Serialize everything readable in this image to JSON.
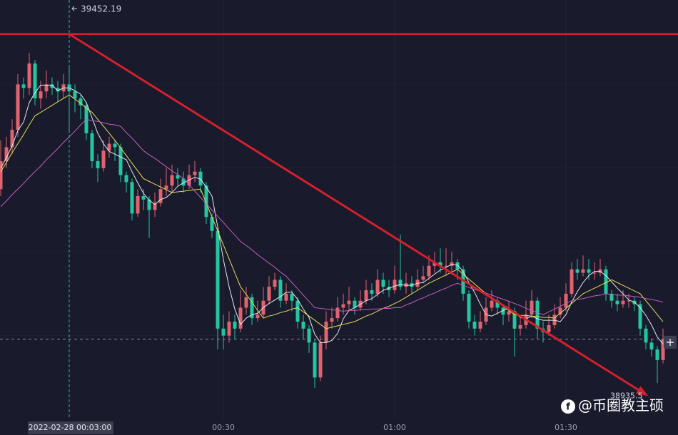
{
  "chart_data": {
    "type": "candlestick",
    "x": [
      "23:51",
      "23:52",
      "23:53",
      "23:54",
      "23:55",
      "23:56",
      "23:57",
      "23:58",
      "23:59",
      "00:00",
      "00:01",
      "00:02",
      "00:03",
      "00:04",
      "00:05",
      "00:06",
      "00:07",
      "00:08",
      "00:09",
      "00:10",
      "00:11",
      "00:12",
      "00:13",
      "00:14",
      "00:15",
      "00:16",
      "00:17",
      "00:18",
      "00:19",
      "00:20",
      "00:21",
      "00:22",
      "00:23",
      "00:24",
      "00:25",
      "00:26",
      "00:27",
      "00:28",
      "00:29",
      "00:30",
      "00:31",
      "00:32",
      "00:33",
      "00:34",
      "00:35",
      "00:36",
      "00:37",
      "00:38",
      "00:39",
      "00:40",
      "00:41",
      "00:42",
      "00:43",
      "00:44",
      "00:45",
      "00:46",
      "00:47",
      "00:48",
      "00:49",
      "00:50",
      "00:51",
      "00:52",
      "00:53",
      "00:54",
      "00:55",
      "00:56",
      "00:57",
      "00:58",
      "00:59",
      "01:00",
      "01:01",
      "01:02",
      "01:03",
      "01:04",
      "01:05",
      "01:06",
      "01:07",
      "01:08",
      "01:09",
      "01:10",
      "01:11",
      "01:12",
      "01:13",
      "01:14",
      "01:15",
      "01:16",
      "01:17",
      "01:18",
      "01:19",
      "01:20",
      "01:21",
      "01:22",
      "01:23",
      "01:24",
      "01:25",
      "01:26",
      "01:27",
      "01:28",
      "01:29",
      "01:30",
      "01:31",
      "01:32",
      "01:33",
      "01:34",
      "01:35",
      "01:36",
      "01:37",
      "01:38",
      "01:39",
      "01:40",
      "01:41",
      "01:42",
      "01:43",
      "01:44",
      "01:45",
      "01:46",
      "01:47"
    ],
    "open": [
      39230,
      39270,
      39290,
      39315,
      39380,
      39375,
      39410,
      39360,
      39370,
      39380,
      39375,
      39370,
      39380,
      39370,
      39360,
      39350,
      39310,
      39270,
      39260,
      39285,
      39295,
      39290,
      39250,
      39240,
      39195,
      39220,
      39215,
      39200,
      39210,
      39230,
      39235,
      39250,
      39245,
      39235,
      39250,
      39255,
      39235,
      39190,
      39170,
      39030,
      39020,
      39040,
      39030,
      39060,
      39075,
      39045,
      39050,
      39070,
      39090,
      39100,
      39070,
      39080,
      39070,
      39040,
      39030,
      39010,
      38960,
      39010,
      39040,
      39045,
      39060,
      39065,
      39070,
      39060,
      39070,
      39085,
      39080,
      39100,
      39090,
      39085,
      39100,
      39090,
      39095,
      39090,
      39100,
      39105,
      39120,
      39125,
      39120,
      39120,
      39125,
      39115,
      39080,
      39040,
      39030,
      39040,
      39060,
      39070,
      39060,
      39050,
      39055,
      39030,
      39035,
      39050,
      39070,
      39030,
      39025,
      39035,
      39050,
      39060,
      39080,
      39115,
      39110,
      39115,
      39110,
      39110,
      39115,
      39080,
      39070,
      39065,
      39070,
      39070,
      39065,
      39030,
      39010,
      39000,
      38985
    ],
    "high": [
      39300,
      39305,
      39330,
      39395,
      39390,
      39425,
      39415,
      39385,
      39400,
      39390,
      39385,
      39395,
      39405,
      39380,
      39365,
      39355,
      39315,
      39280,
      39300,
      39305,
      39300,
      39295,
      39255,
      39245,
      39230,
      39230,
      39220,
      39225,
      39245,
      39260,
      39265,
      39260,
      39255,
      39265,
      39270,
      39260,
      39240,
      39195,
      39175,
      39050,
      39055,
      39050,
      39085,
      39090,
      39080,
      39070,
      39090,
      39105,
      39110,
      39105,
      39095,
      39085,
      39075,
      39050,
      39035,
      39015,
      39020,
      39055,
      39060,
      39075,
      39080,
      39090,
      39075,
      39085,
      39100,
      39095,
      39115,
      39110,
      39100,
      39120,
      39165,
      39110,
      39105,
      39115,
      39120,
      39135,
      39140,
      39145,
      39145,
      39140,
      39130,
      39120,
      39085,
      39050,
      39055,
      39075,
      39085,
      39075,
      39065,
      39070,
      39060,
      39050,
      39070,
      39085,
      39075,
      39040,
      39050,
      39065,
      39075,
      39095,
      39125,
      39130,
      39135,
      39130,
      39125,
      39130,
      39120,
      39085,
      39080,
      39085,
      39080,
      39075,
      39070,
      39035,
      39015,
      39005,
      39030
    ],
    "low": [
      39220,
      39260,
      39280,
      39305,
      39360,
      39365,
      39350,
      39345,
      39360,
      39365,
      39355,
      39360,
      39310,
      39340,
      39330,
      39300,
      39260,
      39240,
      39255,
      39275,
      39270,
      39240,
      39225,
      39185,
      39190,
      39200,
      39160,
      39190,
      39205,
      39220,
      39225,
      39235,
      39225,
      39230,
      39240,
      39225,
      39180,
      39160,
      39000,
      39000,
      39010,
      39015,
      39025,
      39050,
      39035,
      39040,
      39045,
      39065,
      39085,
      39060,
      39065,
      39055,
      39030,
      39015,
      38995,
      38945,
      38955,
      39000,
      39030,
      39040,
      39050,
      39055,
      39050,
      39055,
      39065,
      39070,
      39075,
      39080,
      39075,
      39080,
      39085,
      39080,
      39080,
      39085,
      39095,
      39100,
      39110,
      39110,
      39105,
      39110,
      39100,
      39070,
      39030,
      39020,
      39025,
      39035,
      39055,
      39050,
      39035,
      39040,
      38990,
      39020,
      39030,
      39045,
      39015,
      39010,
      39020,
      39030,
      39045,
      39055,
      39075,
      39100,
      39105,
      39100,
      39100,
      39105,
      39070,
      39060,
      39055,
      39060,
      39060,
      39055,
      39020,
      39000,
      38990,
      38952,
      38980
    ],
    "close": [
      39270,
      39290,
      39315,
      39380,
      39375,
      39410,
      39360,
      39370,
      39380,
      39375,
      39370,
      39380,
      39370,
      39360,
      39350,
      39310,
      39270,
      39260,
      39285,
      39295,
      39290,
      39250,
      39240,
      39195,
      39220,
      39215,
      39200,
      39210,
      39230,
      39235,
      39250,
      39245,
      39235,
      39250,
      39255,
      39235,
      39190,
      39170,
      39030,
      39020,
      39040,
      39030,
      39060,
      39075,
      39045,
      39050,
      39070,
      39090,
      39100,
      39070,
      39080,
      39070,
      39040,
      39030,
      39010,
      38960,
      39010,
      39040,
      39045,
      39060,
      39065,
      39070,
      39060,
      39070,
      39085,
      39080,
      39100,
      39090,
      39085,
      39100,
      39090,
      39095,
      39090,
      39100,
      39105,
      39120,
      39125,
      39120,
      39120,
      39125,
      39115,
      39080,
      39040,
      39030,
      39040,
      39060,
      39070,
      39060,
      39050,
      39055,
      39030,
      39035,
      39050,
      39070,
      39030,
      39025,
      39035,
      39050,
      39060,
      39080,
      39115,
      39110,
      39115,
      39110,
      39110,
      39115,
      39080,
      39070,
      39065,
      39070,
      39070,
      39065,
      39030,
      39010,
      39000,
      38985,
      39015
    ],
    "up_color": "#e06470",
    "down_color": "#22c79f",
    "ma": [
      {
        "color": "#e4e6f0",
        "values": [
          39260,
          39275,
          39292,
          39314,
          39326,
          39354,
          39368,
          39379,
          39379,
          39379,
          39371,
          39375,
          39375,
          39371,
          39366,
          39354,
          39332,
          39310,
          39295,
          39284,
          39280,
          39276,
          39272,
          39255,
          39239,
          39224,
          39214,
          39208,
          39215,
          39218,
          39225,
          39234,
          39239,
          39243,
          39247,
          39244,
          39233,
          39220,
          39176,
          39129,
          39090,
          39058,
          39036,
          39045,
          39050,
          39052,
          39060,
          39066,
          39071,
          39076,
          39082,
          39082,
          39072,
          39058,
          39046,
          39022,
          39010,
          39010,
          39013,
          39023,
          39044,
          39056,
          39060,
          39065,
          39070,
          39073,
          39079,
          39085,
          39088,
          39091,
          39093,
          39092,
          39092,
          39095,
          39096,
          39102,
          39108,
          39114,
          39118,
          39122,
          39121,
          39112,
          39096,
          39082,
          39065,
          39050,
          39048,
          39052,
          39056,
          39059,
          39053,
          39046,
          39044,
          39048,
          39044,
          39042,
          39042,
          39042,
          39040,
          39050,
          39068,
          39083,
          39096,
          39106,
          39112,
          39112,
          39106,
          39097,
          39088,
          39080,
          39071,
          39068,
          39060,
          39049,
          39035,
          39018,
          39008
        ]
      },
      {
        "color": "#e3dc58",
        "values": [
          39255,
          39268,
          39282,
          39295,
          39308,
          39322,
          39335,
          39340,
          39345,
          39350,
          39355,
          39360,
          39365,
          39359,
          39353,
          39346,
          39340,
          39330,
          39320,
          39310,
          39300,
          39289,
          39278,
          39267,
          39256,
          39245,
          39241,
          39237,
          39233,
          39229,
          39225,
          39226,
          39227,
          39228,
          39229,
          39230,
          39210,
          39190,
          39170,
          39150,
          39130,
          39110,
          39090,
          39079,
          39068,
          39056,
          39045,
          39048,
          39050,
          39053,
          39055,
          39058,
          39060,
          39054,
          39048,
          39042,
          39036,
          39030,
          39032,
          39034,
          39036,
          39038,
          39040,
          39044,
          39048,
          39051,
          39055,
          39059,
          39062,
          39066,
          39070,
          39075,
          39080,
          39085,
          39090,
          39095,
          39099,
          39103,
          39107,
          39111,
          39115,
          39108,
          39101,
          39094,
          39087,
          39080,
          39074,
          39068,
          39062,
          39056,
          39050,
          39049,
          39049,
          39048,
          39047,
          39046,
          39046,
          39045,
          39052,
          39059,
          39066,
          39073,
          39080,
          39084,
          39088,
          39092,
          39096,
          39100,
          39096,
          39092,
          39088,
          39084,
          39080,
          39070,
          39060,
          39050,
          39040
        ]
      },
      {
        "color": "#c35fc0",
        "values": [
          39205,
          39213,
          39222,
          39230,
          39238,
          39247,
          39255,
          39263,
          39272,
          39280,
          39288,
          39297,
          39305,
          39313,
          39322,
          39330,
          39328,
          39327,
          39325,
          39323,
          39322,
          39320,
          39311,
          39303,
          39294,
          39285,
          39279,
          39274,
          39268,
          39262,
          39256,
          39251,
          39245,
          39236,
          39227,
          39218,
          39209,
          39200,
          39191,
          39182,
          39173,
          39164,
          39155,
          39149,
          39143,
          39136,
          39130,
          39124,
          39118,
          39111,
          39105,
          39096,
          39087,
          39078,
          39069,
          39060,
          39059,
          39058,
          39057,
          39056,
          39055,
          39056,
          39056,
          39057,
          39057,
          39058,
          39058,
          39059,
          39059,
          39060,
          39060,
          39064,
          39067,
          39071,
          39074,
          39078,
          39081,
          39085,
          39088,
          39092,
          39095,
          39092,
          39089,
          39086,
          39084,
          39081,
          39078,
          39075,
          39072,
          39069,
          39066,
          39063,
          39059,
          39056,
          39053,
          39050,
          39054,
          39058,
          39062,
          39066,
          39070,
          39072,
          39073,
          39075,
          39077,
          39078,
          39080,
          39079,
          39078,
          39078,
          39077,
          39076,
          39075,
          39073,
          39072,
          39070,
          39068
        ]
      }
    ],
    "ylim": [
      38900,
      39501
    ],
    "xticks": [
      "00:30",
      "01:00",
      "01:30"
    ],
    "grid": true,
    "hline": {
      "value": 39452.19,
      "color": "#d3202c"
    },
    "crosshair": {
      "x": "00:03",
      "label": "2022-02-28 00:03:00"
    },
    "trend_line": {
      "from": {
        "x": "00:03",
        "y": 39452.19
      },
      "to": {
        "x": "01:44",
        "y": 38935.5
      },
      "color": "#d3202c"
    },
    "watermark": "@币圈教主硕"
  }
}
